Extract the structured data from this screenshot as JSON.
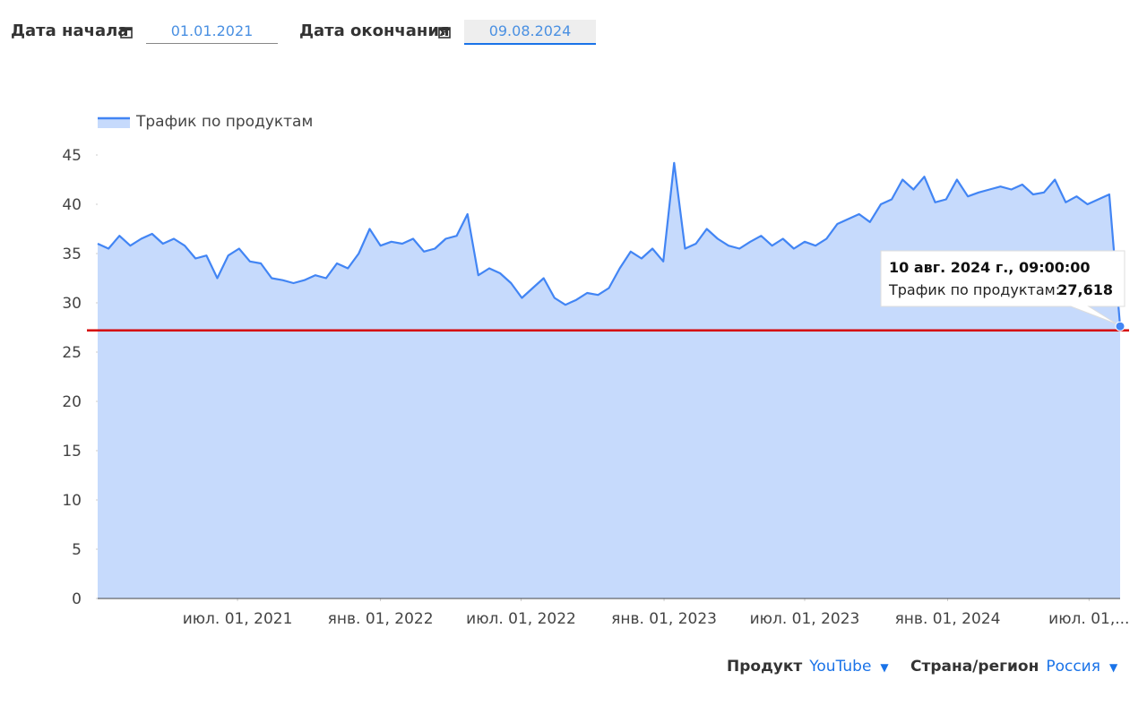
{
  "controls": {
    "start_label": "Дата начала",
    "start_value": "01.01.2021",
    "end_label": "Дата окончания",
    "end_value": "09.08.2024"
  },
  "filters": [
    {
      "label": "Продукт",
      "value": "YouTube"
    },
    {
      "label": "Страна/регион",
      "value": "Россия"
    }
  ],
  "chart_data": {
    "type": "area",
    "x": [
      "2021-01-02",
      "2021-01-16",
      "2021-01-30",
      "2021-02-13",
      "2021-02-27",
      "2021-03-13",
      "2021-03-27",
      "2021-04-10",
      "2021-04-24",
      "2021-05-08",
      "2021-05-22",
      "2021-06-05",
      "2021-06-19",
      "2021-07-03",
      "2021-07-17",
      "2021-07-31",
      "2021-08-14",
      "2021-08-28",
      "2021-09-11",
      "2021-09-25",
      "2021-10-09",
      "2021-10-23",
      "2021-11-06",
      "2021-11-20",
      "2021-12-04",
      "2021-12-18",
      "2022-01-01",
      "2022-01-15",
      "2022-01-29",
      "2022-02-12",
      "2022-02-26",
      "2022-03-12",
      "2022-03-26",
      "2022-04-09",
      "2022-04-23",
      "2022-05-07",
      "2022-05-21",
      "2022-06-04",
      "2022-06-18",
      "2022-07-02",
      "2022-07-16",
      "2022-07-30",
      "2022-08-13",
      "2022-08-27",
      "2022-09-10",
      "2022-09-24",
      "2022-10-08",
      "2022-10-22",
      "2022-11-05",
      "2022-11-19",
      "2022-12-03",
      "2022-12-17",
      "2022-12-31",
      "2023-01-14",
      "2023-01-28",
      "2023-02-11",
      "2023-02-25",
      "2023-03-11",
      "2023-03-25",
      "2023-04-08",
      "2023-04-22",
      "2023-05-06",
      "2023-05-20",
      "2023-06-03",
      "2023-06-17",
      "2023-07-01",
      "2023-07-15",
      "2023-07-29",
      "2023-08-12",
      "2023-08-26",
      "2023-09-09",
      "2023-09-23",
      "2023-10-07",
      "2023-10-21",
      "2023-11-04",
      "2023-11-18",
      "2023-12-02",
      "2023-12-16",
      "2023-12-30",
      "2024-01-13",
      "2024-01-27",
      "2024-02-10",
      "2024-02-24",
      "2024-03-09",
      "2024-03-23",
      "2024-04-06",
      "2024-04-20",
      "2024-05-04",
      "2024-05-18",
      "2024-06-01",
      "2024-06-15",
      "2024-06-29",
      "2024-07-13",
      "2024-07-27",
      "2024-08-10"
    ],
    "series": [
      {
        "name": "Трафик по продуктам",
        "color": "#4285f4",
        "fill": "#c6dafc",
        "values": [
          36,
          35.5,
          36.8,
          35.8,
          36.5,
          37,
          36,
          36.5,
          35.8,
          34.5,
          34.8,
          32.5,
          34.8,
          35.5,
          34.2,
          34,
          32.5,
          32.3,
          32,
          32.3,
          32.8,
          32.5,
          34,
          33.5,
          35,
          37.5,
          35.8,
          36.2,
          36,
          36.5,
          35.2,
          35.5,
          36.5,
          36.8,
          39,
          32.8,
          33.5,
          33,
          32,
          30.5,
          31.5,
          32.5,
          30.5,
          29.8,
          30.3,
          31,
          30.8,
          31.5,
          33.5,
          35.2,
          34.5,
          35.5,
          34.2,
          44.2,
          35.5,
          36,
          37.5,
          36.5,
          35.8,
          35.5,
          36.2,
          36.8,
          35.8,
          36.5,
          35.5,
          36.2,
          35.8,
          36.5,
          38,
          38.5,
          39,
          38.2,
          40,
          40.5,
          42.5,
          41.5,
          42.8,
          40.2,
          40.5,
          42.5,
          40.8,
          41.2,
          41.5,
          41.8,
          41.5,
          42,
          41,
          41.2,
          42.5,
          40.2,
          40.8,
          40,
          40.5,
          41,
          27.618
        ]
      }
    ],
    "xlim": [
      "2021-01-02",
      "2024-08-10"
    ],
    "xticks": [
      {
        "value": "2021-07-01",
        "label": "июл. 01, 2021"
      },
      {
        "value": "2022-01-01",
        "label": "янв. 01, 2022"
      },
      {
        "value": "2022-07-01",
        "label": "июл. 01, 2022"
      },
      {
        "value": "2023-01-01",
        "label": "янв. 01, 2023"
      },
      {
        "value": "2023-07-01",
        "label": "июл. 01, 2023"
      },
      {
        "value": "2024-01-01",
        "label": "янв. 01, 2024"
      },
      {
        "value": "2024-07-01",
        "label": "июл. 01,..."
      }
    ],
    "ylim": [
      0,
      45
    ],
    "yticks": [
      0,
      5,
      10,
      15,
      20,
      25,
      30,
      35,
      40,
      45
    ],
    "reference_line": {
      "value": 27.2,
      "color": "#d50000"
    },
    "legend": "top-left"
  },
  "tooltip": {
    "title": "10 авг. 2024 г., 09:00:00",
    "label": "Трафик по продуктам:",
    "value_label": "27,618"
  }
}
